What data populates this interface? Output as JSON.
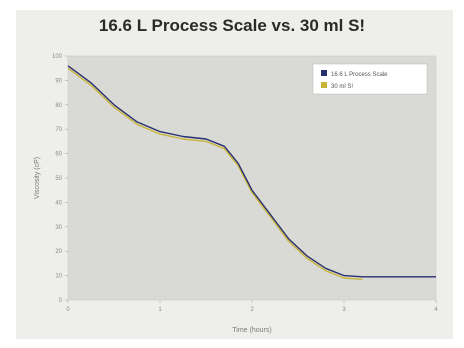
{
  "chart_data": {
    "type": "line",
    "title": "16.6 L Process Scale vs. 30 ml S!",
    "xlabel": "Time (hours)",
    "ylabel": "Viscosity (cP)",
    "xlim": [
      0,
      4
    ],
    "ylim": [
      0,
      100
    ],
    "legend_position": "top-right",
    "grid": false,
    "series": [
      {
        "name": "16.6 L Process Scale",
        "color": "#27306e",
        "x": [
          0.0,
          0.25,
          0.5,
          0.75,
          1.0,
          1.25,
          1.5,
          1.7,
          1.85,
          2.0,
          2.2,
          2.4,
          2.6,
          2.8,
          3.0,
          3.2,
          3.5,
          3.75,
          4.0
        ],
        "y": [
          96,
          89,
          80,
          73,
          69,
          67,
          66,
          63,
          56,
          45,
          35,
          25,
          18,
          13,
          10,
          9.5,
          9.5,
          9.5,
          9.5
        ]
      },
      {
        "name": "30 ml S!",
        "color": "#c9b43a",
        "x": [
          0.0,
          0.25,
          0.5,
          0.75,
          1.0,
          1.25,
          1.5,
          1.7,
          1.85,
          2.0,
          2.2,
          2.4,
          2.6,
          2.8,
          3.0,
          3.2
        ],
        "y": [
          95,
          88,
          79,
          72,
          68,
          66,
          65,
          62,
          55,
          44,
          34,
          24,
          17,
          12,
          9,
          8.5
        ]
      }
    ]
  }
}
